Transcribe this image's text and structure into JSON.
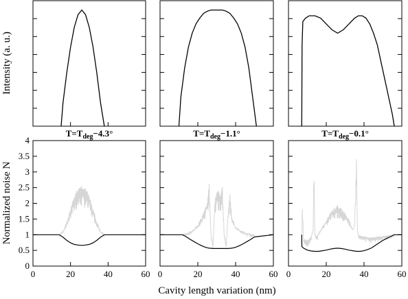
{
  "chart_data": {
    "type": "line",
    "ylabel_top": "Intensity (a. u.)",
    "ylabel_bottom": "Normalized noise N",
    "xlabel": "Cavity length variation (nm)",
    "xlim": [
      0,
      60
    ],
    "xticks": [
      "0",
      "20",
      "40",
      "60"
    ],
    "ylim_bottom": [
      0,
      4
    ],
    "yticks_bottom": [
      "0",
      "0.5",
      "1",
      "1.5",
      "2",
      "2.5",
      "3",
      "3.5",
      "4"
    ],
    "colors": {
      "line": "#000000",
      "noise": "#d6d6d6",
      "axis": "#000000"
    },
    "panels": [
      {
        "title": {
          "prefix": "T=T",
          "sub": "deg",
          "suffix": "−4.3°"
        },
        "intensity": {
          "x": [
            15,
            16,
            18,
            20,
            22,
            24,
            26,
            28,
            30,
            32,
            34,
            36,
            38
          ],
          "y": [
            0,
            0.2,
            0.46,
            0.68,
            0.85,
            0.96,
            1.0,
            0.96,
            0.85,
            0.68,
            0.46,
            0.2,
            0
          ]
        },
        "noise_lower": {
          "x": [
            0,
            14,
            16,
            18,
            20,
            22,
            24,
            26,
            28,
            30,
            32,
            34,
            36,
            38,
            60
          ],
          "y": [
            1,
            1,
            0.92,
            0.82,
            0.74,
            0.69,
            0.67,
            0.66,
            0.67,
            0.69,
            0.74,
            0.82,
            0.92,
            1,
            1
          ]
        },
        "noise_upper_envelope": {
          "x": [
            14,
            16,
            18,
            20,
            22,
            24,
            26,
            28,
            30,
            32,
            34,
            36,
            38
          ],
          "y": [
            1,
            1.15,
            1.45,
            1.85,
            2.25,
            2.5,
            2.58,
            2.5,
            2.25,
            1.85,
            1.45,
            1.15,
            1
          ]
        }
      },
      {
        "title": {
          "prefix": "T=T",
          "sub": "deg",
          "suffix": "−1.1°"
        },
        "intensity": {
          "x": [
            10,
            11,
            13,
            15,
            17,
            19,
            21,
            23,
            25,
            27,
            29,
            31,
            33,
            35,
            37,
            39,
            41,
            43,
            45,
            47,
            49,
            51
          ],
          "y": [
            0,
            0.25,
            0.5,
            0.68,
            0.8,
            0.88,
            0.93,
            0.97,
            0.99,
            1.0,
            1.0,
            1.0,
            1.0,
            0.99,
            0.97,
            0.93,
            0.88,
            0.8,
            0.68,
            0.5,
            0.25,
            0
          ]
        },
        "noise_lower": {
          "x": [
            0,
            12,
            14,
            16,
            18,
            20,
            22,
            24,
            26,
            28,
            32,
            36,
            38,
            40,
            42,
            44,
            46,
            48,
            50,
            60
          ],
          "y": [
            1,
            1,
            0.93,
            0.85,
            0.78,
            0.71,
            0.65,
            0.6,
            0.57,
            0.56,
            0.56,
            0.56,
            0.57,
            0.6,
            0.65,
            0.71,
            0.78,
            0.85,
            0.93,
            1
          ]
        },
        "noise_upper_envelope": {
          "x": [
            12,
            15,
            18,
            20,
            22,
            24,
            25,
            26,
            27,
            28,
            29,
            30,
            31,
            32,
            33,
            34,
            35,
            36,
            37,
            38,
            40,
            43,
            46,
            50
          ],
          "y": [
            1,
            1.08,
            1.2,
            1.35,
            1.6,
            1.9,
            2.1,
            2.65,
            1.0,
            0.6,
            2.1,
            2.4,
            2.4,
            2.3,
            2.55,
            1.0,
            0.6,
            1.7,
            2.3,
            1.6,
            1.3,
            1.15,
            1.05,
            1
          ]
        }
      },
      {
        "title": {
          "prefix": "T=T",
          "sub": "deg",
          "suffix": "−0.1°"
        },
        "intensity": {
          "x": [
            7,
            7.2,
            7.6,
            9,
            11,
            14,
            17,
            20,
            23,
            26,
            29,
            32,
            35,
            37,
            39,
            41,
            43,
            45,
            47,
            49,
            51,
            53,
            55,
            56
          ],
          "y": [
            0,
            0.7,
            0.9,
            0.93,
            0.95,
            0.95,
            0.93,
            0.88,
            0.83,
            0.8,
            0.83,
            0.88,
            0.93,
            0.95,
            0.95,
            0.93,
            0.88,
            0.8,
            0.7,
            0.55,
            0.4,
            0.25,
            0.1,
            0
          ]
        },
        "noise_lower": {
          "x": [
            7,
            7.1,
            8,
            10,
            12,
            14,
            16,
            18,
            20,
            22,
            24,
            26,
            28,
            30,
            32,
            34,
            36,
            38,
            40,
            42,
            44,
            46,
            48,
            50,
            52,
            54,
            56,
            60
          ],
          "y": [
            1,
            0.62,
            0.57,
            0.51,
            0.48,
            0.47,
            0.47,
            0.49,
            0.51,
            0.54,
            0.56,
            0.57,
            0.56,
            0.54,
            0.51,
            0.49,
            0.47,
            0.47,
            0.49,
            0.53,
            0.58,
            0.66,
            0.74,
            0.82,
            0.88,
            0.94,
            1,
            1
          ]
        },
        "noise_upper_envelope": {
          "x": [
            7,
            7.4,
            8,
            10,
            12,
            13,
            13.5,
            14,
            15,
            17,
            20,
            23,
            26,
            29,
            32,
            34,
            35,
            36,
            36.5,
            37,
            38,
            40,
            44,
            48,
            52,
            56
          ],
          "y": [
            1,
            2.0,
            0.8,
            0.7,
            0.9,
            1.2,
            3.3,
            1.0,
            0.9,
            1.2,
            1.5,
            1.8,
            1.95,
            1.8,
            1.5,
            1.2,
            1.4,
            3.5,
            1.2,
            1.0,
            0.95,
            0.9,
            0.85,
            0.9,
            0.95,
            1
          ]
        }
      }
    ]
  }
}
